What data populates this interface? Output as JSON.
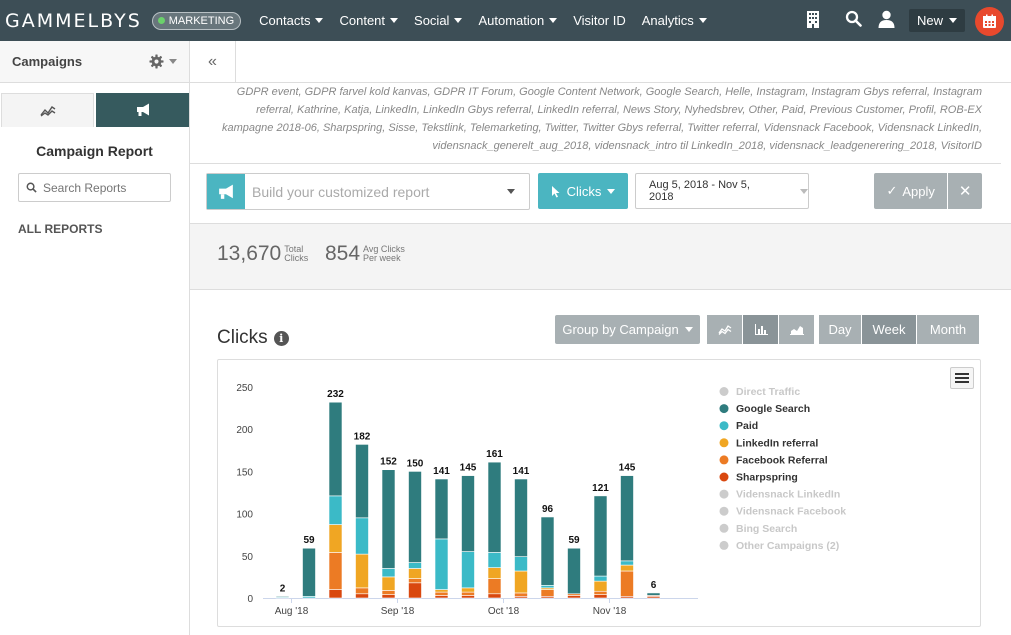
{
  "topbar": {
    "brand": "GAMMELBYS",
    "badge": "MARKETING",
    "nav": [
      {
        "label": "Contacts",
        "caret": true
      },
      {
        "label": "Content",
        "caret": true
      },
      {
        "label": "Social",
        "caret": true
      },
      {
        "label": "Automation",
        "caret": true
      },
      {
        "label": "Visitor ID",
        "caret": false
      },
      {
        "label": "Analytics",
        "caret": true
      }
    ],
    "new_label": "New",
    "icons": [
      "building-icon",
      "search-icon",
      "user-icon",
      "calendar-icon"
    ]
  },
  "sidebar": {
    "title": "Campaigns",
    "report_title": "Campaign Report",
    "search_placeholder": "Search Reports",
    "all_reports": "ALL REPORTS"
  },
  "main": {
    "tags": "GDPR event, GDPR farvel kold kanvas, GDPR IT Forum, Google Content Network, Google Search, Helle, Instagram, Instagram Gbys referral, Instagram referral, Kathrine, Katja, LinkedIn, LinkedIn Gbys referral, LinkedIn referral, News Story, Nyhedsbrev, Other, Paid, Previous Customer, Profil, ROB-EX kampagne 2018-06, Sharpspring, Sisse, Tekstlink, Telemarketing, Twitter, Twitter Gbys referral, Twitter referral, Vidensnack Facebook, Vidensnack LinkedIn, vidensnack_generelt_aug_2018, vidensnack_intro til LinkedIn_2018, vidensnack_leadgenerering_2018, VisitorID",
    "build_placeholder": "Build your customized report",
    "metric_label": "Clicks",
    "date_range": "Aug 5, 2018 - Nov 5, 2018",
    "apply_label": "Apply",
    "stats": [
      {
        "value": "13,670",
        "label1": "Total",
        "label2": "Clicks"
      },
      {
        "value": "854",
        "label1": "Avg Clicks",
        "label2": "Per week"
      }
    ],
    "chart_title": "Clicks",
    "group_label": "Group by Campaign",
    "periods": [
      "Day",
      "Week",
      "Month"
    ],
    "selected_period": "Week"
  },
  "chart_data": {
    "type": "bar",
    "stacked": true,
    "title": "Clicks",
    "ylim": [
      0,
      250
    ],
    "yticks": [
      0,
      50,
      100,
      150,
      200,
      250
    ],
    "x_tick_labels": [
      "Aug '18",
      "Sep '18",
      "Oct '18",
      "Nov '18"
    ],
    "x_tick_positions": [
      0,
      4,
      8,
      12
    ],
    "totals": [
      2,
      59,
      232,
      182,
      152,
      150,
      141,
      145,
      161,
      141,
      96,
      59,
      121,
      145,
      6
    ],
    "legend": [
      {
        "name": "Direct Traffic",
        "color": "#cccccc",
        "active": false
      },
      {
        "name": "Google Search",
        "color": "#2f7c7e",
        "active": true
      },
      {
        "name": "Paid",
        "color": "#3bbac7",
        "active": true
      },
      {
        "name": "LinkedIn referral",
        "color": "#f0a623",
        "active": true
      },
      {
        "name": "Facebook Referral",
        "color": "#ec7b24",
        "active": true
      },
      {
        "name": "Sharpspring",
        "color": "#d9480f",
        "active": true
      },
      {
        "name": "Vidensnack LinkedIn",
        "color": "#cccccc",
        "active": false
      },
      {
        "name": "Vidensnack Facebook",
        "color": "#cccccc",
        "active": false
      },
      {
        "name": "Bing Search",
        "color": "#cccccc",
        "active": false
      },
      {
        "name": "Other Campaigns (2)",
        "color": "#cccccc",
        "active": false
      }
    ],
    "series": [
      {
        "name": "Sharpspring",
        "color": "#d9480f",
        "values": [
          0,
          0,
          10,
          5,
          4,
          18,
          3,
          3,
          5,
          2,
          2,
          3,
          4,
          2,
          2
        ]
      },
      {
        "name": "Facebook Referral",
        "color": "#ec7b24",
        "values": [
          0,
          0,
          44,
          7,
          5,
          5,
          4,
          4,
          18,
          4,
          8,
          2,
          4,
          30,
          1
        ]
      },
      {
        "name": "LinkedIn referral",
        "color": "#f0a623",
        "values": [
          0,
          0,
          33,
          40,
          16,
          12,
          3,
          5,
          13,
          26,
          2,
          0,
          12,
          7,
          0
        ]
      },
      {
        "name": "Paid",
        "color": "#3bbac7",
        "values": [
          1,
          2,
          34,
          43,
          10,
          7,
          60,
          43,
          18,
          17,
          3,
          0,
          6,
          5,
          0
        ]
      },
      {
        "name": "Google Search",
        "color": "#2f7c7e",
        "values": [
          1,
          57,
          111,
          87,
          117,
          108,
          71,
          90,
          107,
          92,
          81,
          54,
          95,
          101,
          3
        ]
      }
    ]
  }
}
